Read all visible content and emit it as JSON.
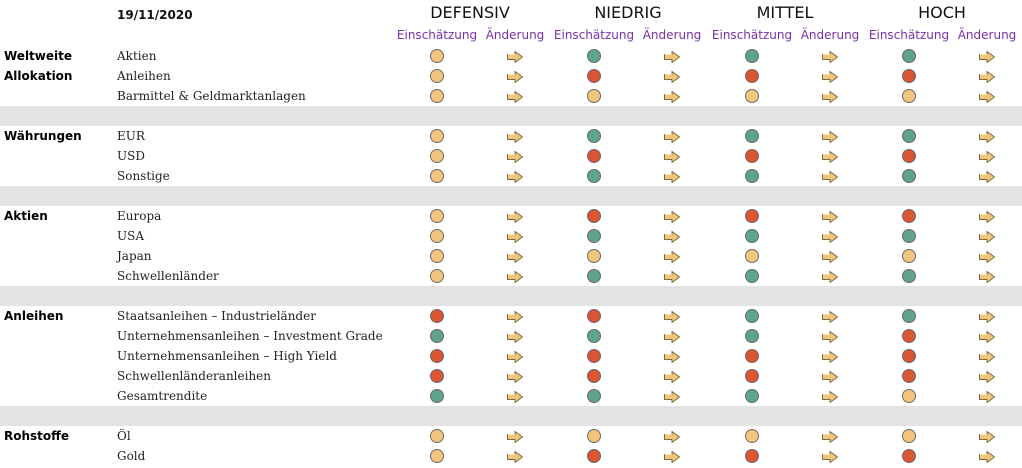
{
  "date": "19/11/2020",
  "scenarios": [
    "DEFENSIV",
    "NIEDRIG",
    "MITTEL",
    "HOCH"
  ],
  "sub_headers": {
    "assessment": "Einschätzung",
    "change": "Änderung"
  },
  "colors": {
    "yellow": "#f2c57c",
    "red": "#dc5533",
    "green": "#5fa38a",
    "separator": "#e3e3e3",
    "accent": "#7a2fa8"
  },
  "icons": {
    "change": "arrow-right-icon",
    "assessment": "circle-indicator-icon"
  },
  "sections": [
    {
      "title": [
        "Weltweite",
        "Allokation"
      ],
      "rows": [
        {
          "label": "Aktien",
          "ratings": [
            "yellow",
            "green",
            "green",
            "green"
          ]
        },
        {
          "label": "Anleihen",
          "ratings": [
            "yellow",
            "red",
            "red",
            "red"
          ]
        },
        {
          "label": "Barmittel & Geldmarktanlagen",
          "ratings": [
            "yellow",
            "yellow",
            "yellow",
            "yellow"
          ]
        }
      ]
    },
    {
      "title": [
        "Währungen"
      ],
      "rows": [
        {
          "label": "EUR",
          "ratings": [
            "yellow",
            "green",
            "green",
            "green"
          ]
        },
        {
          "label": "USD",
          "ratings": [
            "yellow",
            "red",
            "red",
            "red"
          ]
        },
        {
          "label": "Sonstige",
          "ratings": [
            "yellow",
            "green",
            "green",
            "green"
          ]
        }
      ]
    },
    {
      "title": [
        "Aktien"
      ],
      "rows": [
        {
          "label": "Europa",
          "ratings": [
            "yellow",
            "red",
            "red",
            "red"
          ]
        },
        {
          "label": "USA",
          "ratings": [
            "yellow",
            "green",
            "green",
            "green"
          ]
        },
        {
          "label": "Japan",
          "ratings": [
            "yellow",
            "yellow",
            "yellow",
            "yellow"
          ]
        },
        {
          "label": "Schwellenländer",
          "ratings": [
            "yellow",
            "green",
            "green",
            "green"
          ]
        }
      ]
    },
    {
      "title": [
        "Anleihen"
      ],
      "rows": [
        {
          "label": "Staatsanleihen – Industrieländer",
          "ratings": [
            "red",
            "red",
            "green",
            "green"
          ]
        },
        {
          "label": "Unternehmensanleihen – Investment Grade",
          "ratings": [
            "green",
            "green",
            "green",
            "red"
          ]
        },
        {
          "label": "Unternehmensanleihen – High Yield",
          "ratings": [
            "red",
            "red",
            "red",
            "red"
          ]
        },
        {
          "label": "Schwellenländeranleihen",
          "ratings": [
            "red",
            "red",
            "red",
            "red"
          ]
        },
        {
          "label": "Gesamtrendite",
          "ratings": [
            "green",
            "green",
            "green",
            "yellow"
          ]
        }
      ]
    },
    {
      "title": [
        "Rohstoffe"
      ],
      "rows": [
        {
          "label": "Öl",
          "ratings": [
            "yellow",
            "yellow",
            "yellow",
            "yellow"
          ]
        },
        {
          "label": "Gold",
          "ratings": [
            "yellow",
            "red",
            "red",
            "red"
          ]
        }
      ]
    }
  ]
}
